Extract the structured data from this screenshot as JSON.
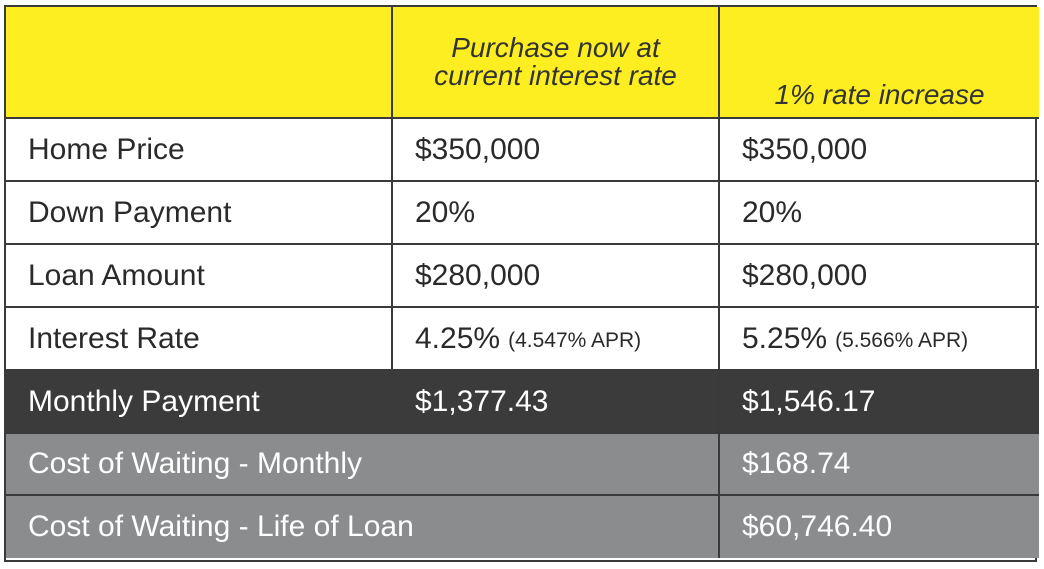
{
  "header": {
    "col1_line1": "Purchase now at",
    "col1_line2": "current interest rate",
    "col2": "1% rate increase"
  },
  "rows": [
    {
      "label": "Home Price",
      "now": "$350,000",
      "increase": "$350,000"
    },
    {
      "label": "Down Payment",
      "now": "20%",
      "increase": "20%"
    },
    {
      "label": "Loan Amount",
      "now": "$280,000",
      "increase": "$280,000"
    },
    {
      "label": "Interest Rate",
      "now": "4.25%",
      "now_apr": "(4.547% APR)",
      "increase": "5.25%",
      "increase_apr": "(5.566% APR)"
    }
  ],
  "monthly": {
    "label": "Monthly Payment",
    "now": "$1,377.43",
    "increase": "$1,546.17"
  },
  "cost_monthly": {
    "label": "Cost of Waiting - Monthly",
    "value": "$168.74"
  },
  "cost_life": {
    "label": "Cost of Waiting - Life of Loan",
    "value": "$60,746.40"
  },
  "colors": {
    "header_bg": "#fdee21",
    "monthly_bg": "#3b3b3c",
    "cost_bg": "#8b8c8e"
  }
}
